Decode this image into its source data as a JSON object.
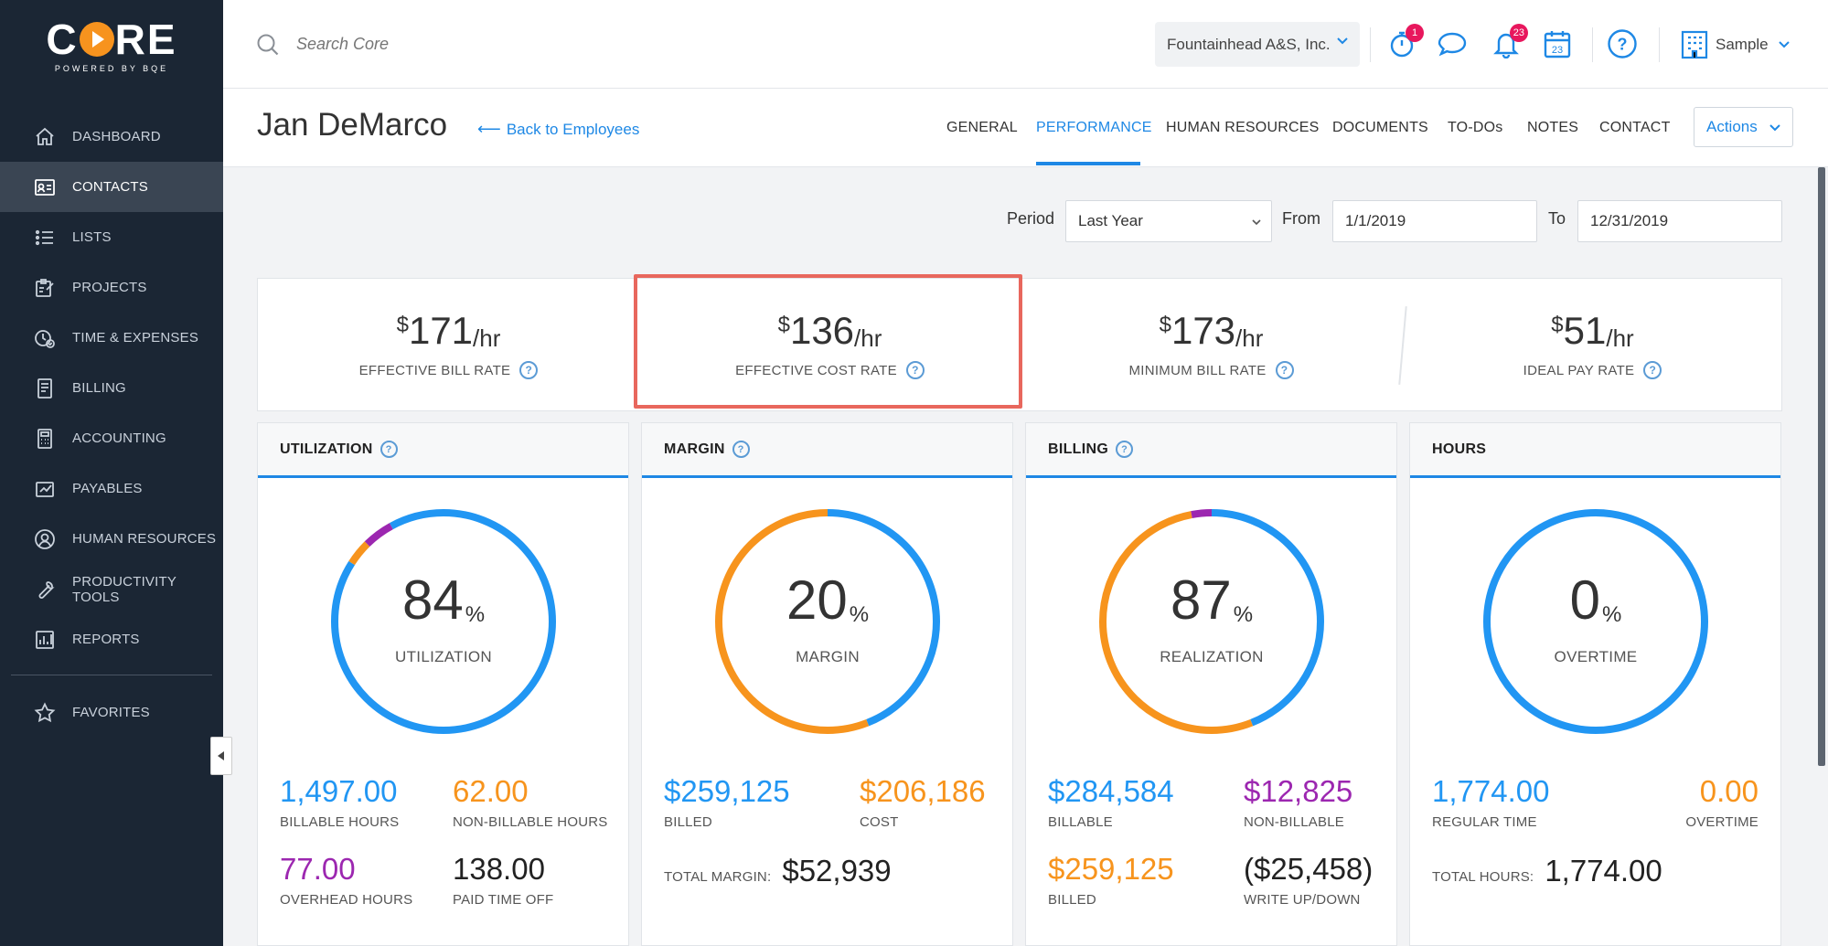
{
  "colors": {
    "accent": "#1e88e5",
    "ring_blue": "#2196f3",
    "ring_orange": "#f7941d",
    "ring_purple": "#9c27b0",
    "highlight": "#e8675d"
  },
  "logo": {
    "word": "CORE",
    "sub": "POWERED BY BQE"
  },
  "sidebar": {
    "items": [
      {
        "label": "DASHBOARD",
        "icon": "home-icon"
      },
      {
        "label": "CONTACTS",
        "icon": "contacts-icon",
        "active": true
      },
      {
        "label": "LISTS",
        "icon": "list-icon"
      },
      {
        "label": "PROJECTS",
        "icon": "projects-icon"
      },
      {
        "label": "TIME & EXPENSES",
        "icon": "time-expenses-icon"
      },
      {
        "label": "BILLING",
        "icon": "billing-icon"
      },
      {
        "label": "ACCOUNTING",
        "icon": "calculator-icon"
      },
      {
        "label": "PAYABLES",
        "icon": "payables-icon"
      },
      {
        "label": "HUMAN RESOURCES",
        "icon": "person-icon"
      },
      {
        "label": "PRODUCTIVITY TOOLS",
        "icon": "wrench-icon"
      },
      {
        "label": "REPORTS",
        "icon": "reports-icon"
      },
      {
        "label": "FAVORITES",
        "icon": "star-icon"
      }
    ]
  },
  "topbar": {
    "search_placeholder": "Search Core",
    "company": "Fountainhead A&S, Inc.",
    "timer_badge": "1",
    "notifications_badge": "23",
    "calendar_day": "23",
    "user": "Sample"
  },
  "header": {
    "employee_name": "Jan DeMarco",
    "back_label": "Back to Employees",
    "tabs": [
      "GENERAL",
      "PERFORMANCE",
      "HUMAN RESOURCES",
      "DOCUMENTS",
      "TO-DOs",
      "NOTES",
      "CONTACT"
    ],
    "active_tab": "PERFORMANCE",
    "actions_label": "Actions"
  },
  "filters": {
    "period_label": "Period",
    "period_value": "Last Year",
    "from_label": "From",
    "from_value": "1/1/2019",
    "to_label": "To",
    "to_value": "12/31/2019"
  },
  "rates": [
    {
      "currency": "$",
      "value": "171",
      "unit": "/hr",
      "label": "EFFECTIVE BILL RATE"
    },
    {
      "currency": "$",
      "value": "136",
      "unit": "/hr",
      "label": "EFFECTIVE COST RATE"
    },
    {
      "currency": "$",
      "value": "173",
      "unit": "/hr",
      "label": "MINIMUM BILL RATE"
    },
    {
      "currency": "$",
      "value": "51",
      "unit": "/hr",
      "label": "IDEAL PAY RATE"
    }
  ],
  "cards": {
    "utilization": {
      "title": "UTILIZATION",
      "percent": "84",
      "pct_sign": "%",
      "caption": "UTILIZATION",
      "ring": [
        {
          "color": "blue",
          "fraction": 0.84
        },
        {
          "color": "orange",
          "fraction": 0.036
        },
        {
          "color": "purple",
          "fraction": 0.044
        },
        {
          "color": "blue",
          "fraction": 0.08
        }
      ],
      "s1_value": "1,497.00",
      "s1_label": "BILLABLE HOURS",
      "s2_value": "62.00",
      "s2_label": "NON-BILLABLE HOURS",
      "s3_value": "77.00",
      "s3_label": "OVERHEAD HOURS",
      "s4_value": "138.00",
      "s4_label": "PAID TIME OFF"
    },
    "margin": {
      "title": "MARGIN",
      "percent": "20",
      "pct_sign": "%",
      "caption": "MARGIN",
      "ring": [
        {
          "color": "blue",
          "fraction": 0.44
        },
        {
          "color": "orange",
          "fraction": 0.56
        }
      ],
      "s1_value": "$259,125",
      "s1_label": "BILLED",
      "s2_value": "$206,186",
      "s2_label": "COST",
      "total_label": "TOTAL MARGIN:",
      "total_value": "$52,939"
    },
    "billing": {
      "title": "BILLING",
      "percent": "87",
      "pct_sign": "%",
      "caption": "REALIZATION",
      "ring": [
        {
          "color": "blue",
          "fraction": 0.44
        },
        {
          "color": "orange",
          "fraction": 0.53
        },
        {
          "color": "purple",
          "fraction": 0.03
        }
      ],
      "s1_value": "$284,584",
      "s1_label": "BILLABLE",
      "s2_value": "$12,825",
      "s2_label": "NON-BILLABLE",
      "s3_value": "$259,125",
      "s3_label": "BILLED",
      "s4_value": "($25,458)",
      "s4_label": "WRITE UP/DOWN"
    },
    "hours": {
      "title": "HOURS",
      "percent": "0",
      "pct_sign": "%",
      "caption": "OVERTIME",
      "ring": [
        {
          "color": "blue",
          "fraction": 1
        }
      ],
      "s1_value": "1,774.00",
      "s1_label": "REGULAR TIME",
      "s2_value": "0.00",
      "s2_label": "OVERTIME",
      "total_label": "TOTAL HOURS:",
      "total_value": "1,774.00"
    }
  }
}
